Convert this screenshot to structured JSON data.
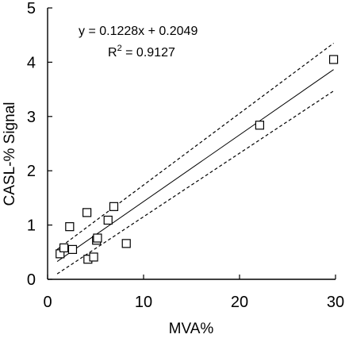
{
  "chart_data": {
    "type": "scatter",
    "title": "",
    "xlabel": "MVA%",
    "ylabel": "CASL-% Signal",
    "xlim": [
      0,
      30
    ],
    "ylim": [
      0,
      5
    ],
    "xticks": [
      0,
      10,
      20,
      30
    ],
    "yticks": [
      0,
      1,
      2,
      3,
      4,
      5
    ],
    "grid": false,
    "legend": "none",
    "marker": "open-square",
    "series": [
      {
        "x": [
          1.3,
          1.7,
          2.3,
          2.6,
          4.1,
          4.2,
          4.8,
          5.1,
          5.2,
          6.3,
          6.9,
          8.2,
          22.1,
          29.8
        ],
        "y": [
          0.47,
          0.58,
          0.97,
          0.55,
          1.23,
          0.37,
          0.41,
          0.72,
          0.76,
          1.09,
          1.34,
          0.66,
          2.84,
          4.05
        ]
      }
    ],
    "fit": {
      "slope": 0.1228,
      "intercept": 0.2049,
      "x_range": [
        1.0,
        29.8
      ],
      "confidence_band": {
        "upper": [
          [
            1.0,
            0.55
          ],
          [
            29.8,
            4.35
          ]
        ],
        "lower": [
          [
            1.0,
            0.1
          ],
          [
            29.8,
            3.47
          ]
        ]
      }
    },
    "annotations": {
      "equation_text": "y = 0.1228x + 0.2049",
      "r2_label": "R",
      "r2_sup": "2",
      "r2_value": " = 0.9127"
    }
  }
}
